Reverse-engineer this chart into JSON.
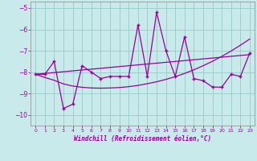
{
  "x": [
    0,
    1,
    2,
    3,
    4,
    5,
    6,
    7,
    8,
    9,
    10,
    11,
    12,
    13,
    14,
    15,
    16,
    17,
    18,
    19,
    20,
    21,
    22,
    23
  ],
  "y_main": [
    -8.1,
    -8.1,
    -7.5,
    -9.7,
    -9.5,
    -7.7,
    -8.0,
    -8.3,
    -8.2,
    -8.2,
    -8.2,
    -5.8,
    -8.2,
    -5.2,
    -7.0,
    -8.2,
    -6.35,
    -8.3,
    -8.4,
    -8.7,
    -8.7,
    -8.1,
    -8.2,
    -7.1
  ],
  "y_trend1": [
    -8.1,
    -8.06,
    -8.02,
    -7.98,
    -7.94,
    -7.9,
    -7.86,
    -7.82,
    -7.78,
    -7.74,
    -7.7,
    -7.66,
    -7.62,
    -7.58,
    -7.54,
    -7.5,
    -7.46,
    -7.42,
    -7.38,
    -7.34,
    -7.3,
    -7.26,
    -7.22,
    -7.18
  ],
  "y_trend2": [
    -8.1,
    -8.25,
    -8.38,
    -8.55,
    -8.65,
    -8.71,
    -8.74,
    -8.75,
    -8.74,
    -8.72,
    -8.68,
    -8.62,
    -8.54,
    -8.45,
    -8.34,
    -8.21,
    -8.06,
    -7.89,
    -7.7,
    -7.49,
    -7.26,
    -7.01,
    -6.74,
    -6.45
  ],
  "color": "#990099",
  "background_color": "#c8eaea",
  "grid_color": "#9dcece",
  "xlabel": "Windchill (Refroidissement éolien,°C)",
  "ylim": [
    -10.5,
    -4.7
  ],
  "xlim": [
    -0.5,
    23.5
  ],
  "yticks": [
    -10,
    -9,
    -8,
    -7,
    -6,
    -5
  ],
  "xticks": [
    0,
    1,
    2,
    3,
    4,
    5,
    6,
    7,
    8,
    9,
    10,
    11,
    12,
    13,
    14,
    15,
    16,
    17,
    18,
    19,
    20,
    21,
    22,
    23
  ]
}
